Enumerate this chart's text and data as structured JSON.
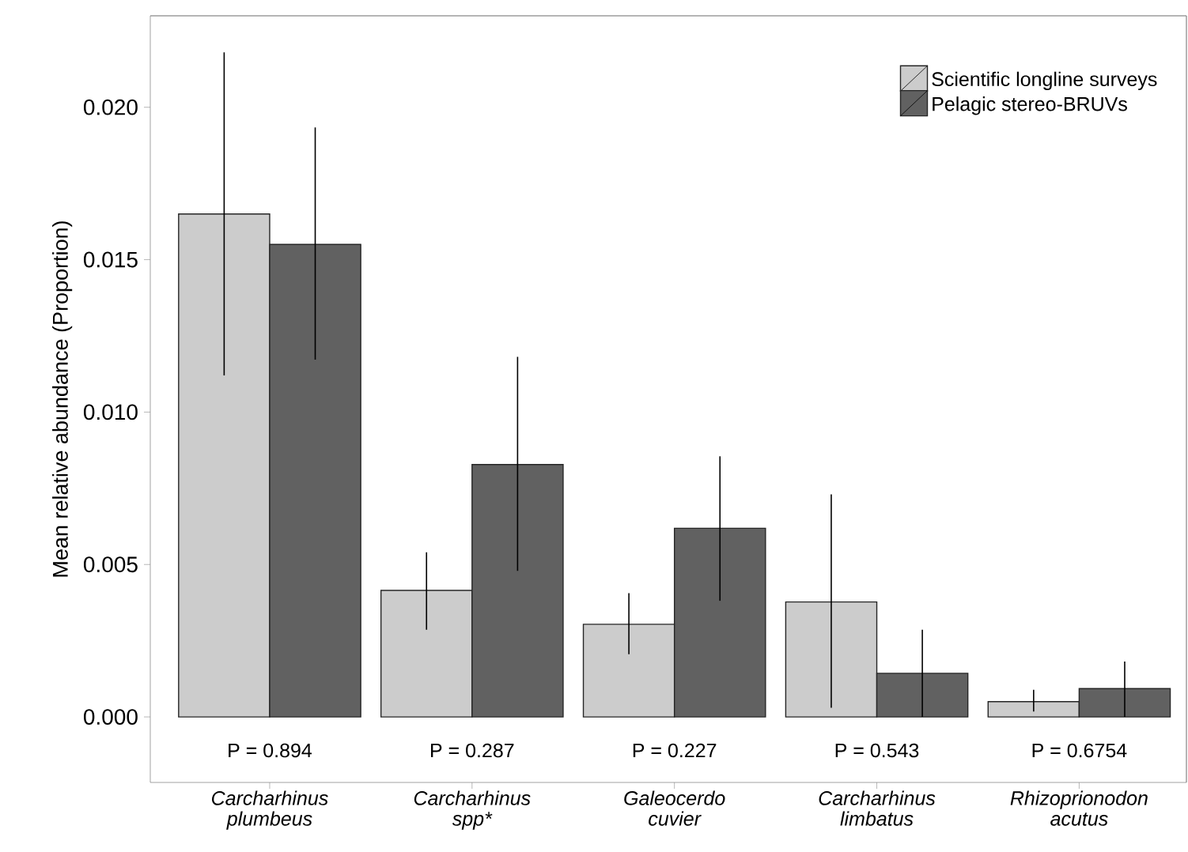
{
  "chart_data": {
    "type": "bar",
    "ylabel": "Mean relative abundance (Proportion)",
    "categories": [
      "Carcharhinus plumbeus",
      "Carcharhinus spp*",
      "Galeocerdo cuvier",
      "Carcharhinus limbatus",
      "Rhizoprionodon acutus"
    ],
    "series": [
      {
        "name": "Scientific longline surveys",
        "color": "#cccccc",
        "values": [
          0.0165,
          0.00415,
          0.00304,
          0.00377,
          0.0005
        ],
        "errors": [
          [
            0.0112,
            0.0218
          ],
          [
            0.00286,
            0.0054
          ],
          [
            0.00206,
            0.00406
          ],
          [
            0.0003,
            0.0073
          ],
          [
            0.00018,
            0.00089
          ]
        ]
      },
      {
        "name": "Pelagic stereo-BRUVs",
        "color": "#616161",
        "values": [
          0.0155,
          0.00828,
          0.00619,
          0.00143,
          0.00093
        ],
        "errors": [
          [
            0.01172,
            0.01934
          ],
          [
            0.00479,
            0.01181
          ],
          [
            0.00381,
            0.00855
          ],
          [
            0.0,
            0.00286
          ],
          [
            0.0,
            0.00182
          ]
        ]
      }
    ],
    "ylim": [
      -0.00215,
      0.023
    ],
    "yticks": [
      {
        "value": 0,
        "label": "0.000"
      },
      {
        "value": 0.005,
        "label": "0.005"
      },
      {
        "value": 0.01,
        "label": "0.010"
      },
      {
        "value": 0.015,
        "label": "0.015"
      },
      {
        "value": 0.02,
        "label": "0.020"
      }
    ],
    "legend": "top right",
    "annotations": [
      "P = 0.894",
      "P = 0.287",
      "P = 0.227",
      "P = 0.543",
      "P = 0.6754"
    ]
  }
}
